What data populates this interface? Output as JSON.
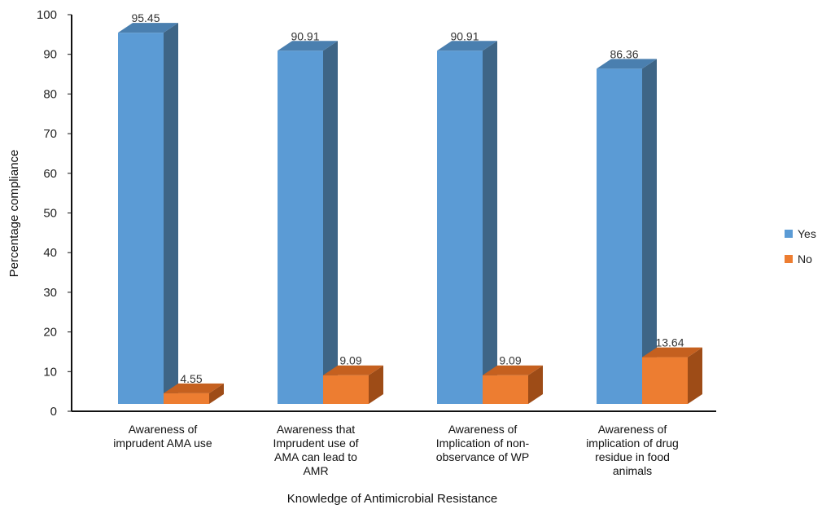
{
  "chart_data": {
    "type": "bar",
    "style": "3d-clustered-column",
    "title": "",
    "xlabel": "Knowledge of Antimicrobial Resistance",
    "ylabel": "Percentage compliance",
    "ylim": [
      0,
      100
    ],
    "yticks": [
      0,
      10,
      20,
      30,
      40,
      50,
      60,
      70,
      80,
      90,
      100
    ],
    "grid": false,
    "legend_position": "right",
    "categories": [
      [
        "Awareness of",
        "imprudent  AMA use"
      ],
      [
        "Awareness that",
        "Imprudent use of",
        "AMA can lead to",
        "AMR"
      ],
      [
        "Awareness of",
        "Implication of non-",
        "observance of WP"
      ],
      [
        "Awareness of",
        "implication of drug",
        "residue in food",
        "animals"
      ]
    ],
    "series": [
      {
        "name": "Yes",
        "values": [
          95.45,
          90.91,
          90.91,
          86.36
        ],
        "labels": [
          "95.45",
          "90.91",
          "90.91",
          "86.36"
        ],
        "color": "#5B9BD5",
        "side": "#3E6586",
        "top": "#4A7FAF"
      },
      {
        "name": "No",
        "values": [
          4.55,
          9.09,
          9.09,
          13.64
        ],
        "labels": [
          "4.55",
          "9.09",
          "9.09",
          "13.64"
        ],
        "color": "#ED7D31",
        "side": "#9E4C17",
        "top": "#C5601F"
      }
    ]
  }
}
